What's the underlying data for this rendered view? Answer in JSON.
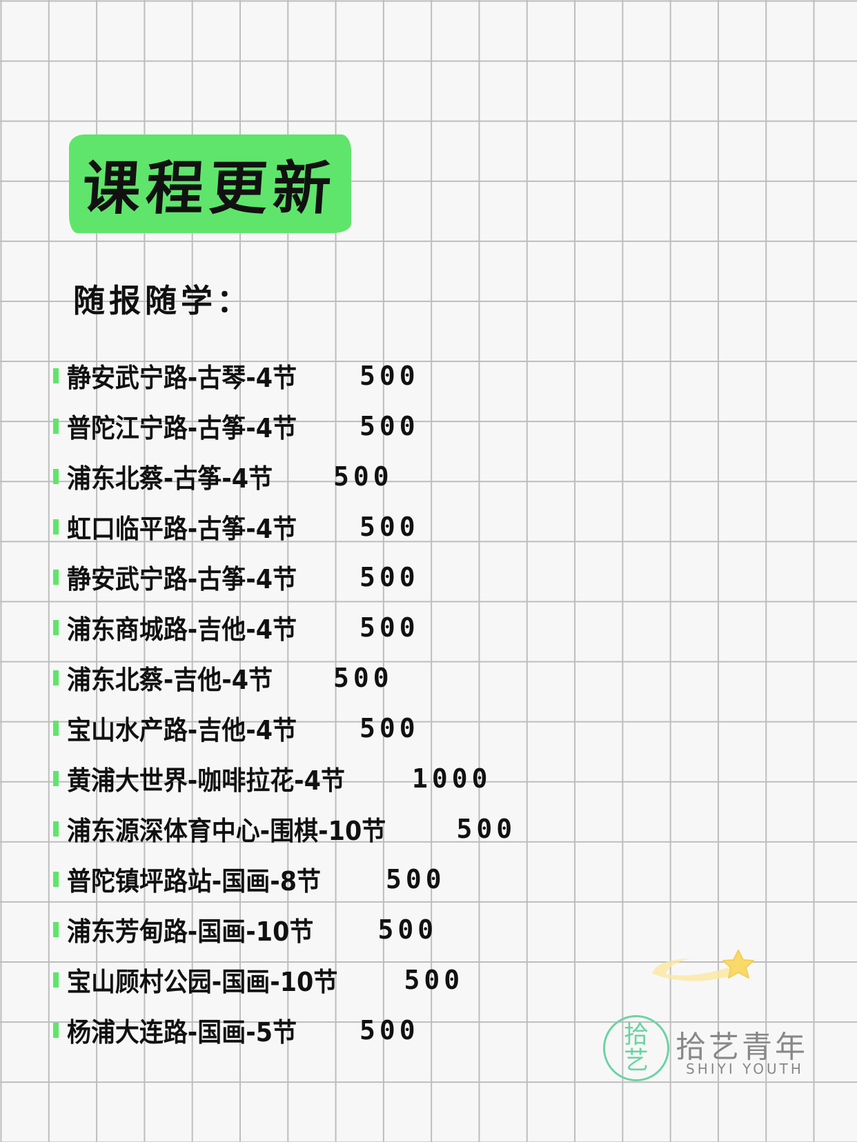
{
  "title": "课程更新",
  "subtitle": "随报随学：",
  "courses": [
    {
      "name": "静安武宁路-古琴-4节",
      "price": "500"
    },
    {
      "name": "普陀江宁路-古筝-4节",
      "price": "500"
    },
    {
      "name": "浦东北蔡-古筝-4节",
      "price": "500"
    },
    {
      "name": "虹口临平路-古筝-4节",
      "price": "500"
    },
    {
      "name": "静安武宁路-古筝-4节",
      "price": "500"
    },
    {
      "name": "浦东商城路-吉他-4节",
      "price": "500"
    },
    {
      "name": "浦东北蔡-吉他-4节",
      "price": "500"
    },
    {
      "name": "宝山水产路-吉他-4节",
      "price": "500"
    },
    {
      "name": "黄浦大世界-咖啡拉花-4节",
      "price": "1000"
    },
    {
      "name": "浦东源深体育中心-围棋-10节",
      "price": "500"
    },
    {
      "name": "普陀镇坪路站-国画-8节",
      "price": "500"
    },
    {
      "name": "浦东芳甸路-国画-10节",
      "price": "500"
    },
    {
      "name": "宝山顾村公园-国画-10节",
      "price": "500"
    },
    {
      "name": "杨浦大连路-国画-5节",
      "price": "500"
    }
  ],
  "logo": {
    "mark_top": "拾",
    "mark_bottom": "艺",
    "name": "拾艺青年",
    "english": "SHIYI YOUTH"
  },
  "colors": {
    "accent": "#5fe56b",
    "logo": "#6cd3a3",
    "star": "#f8d96a"
  }
}
